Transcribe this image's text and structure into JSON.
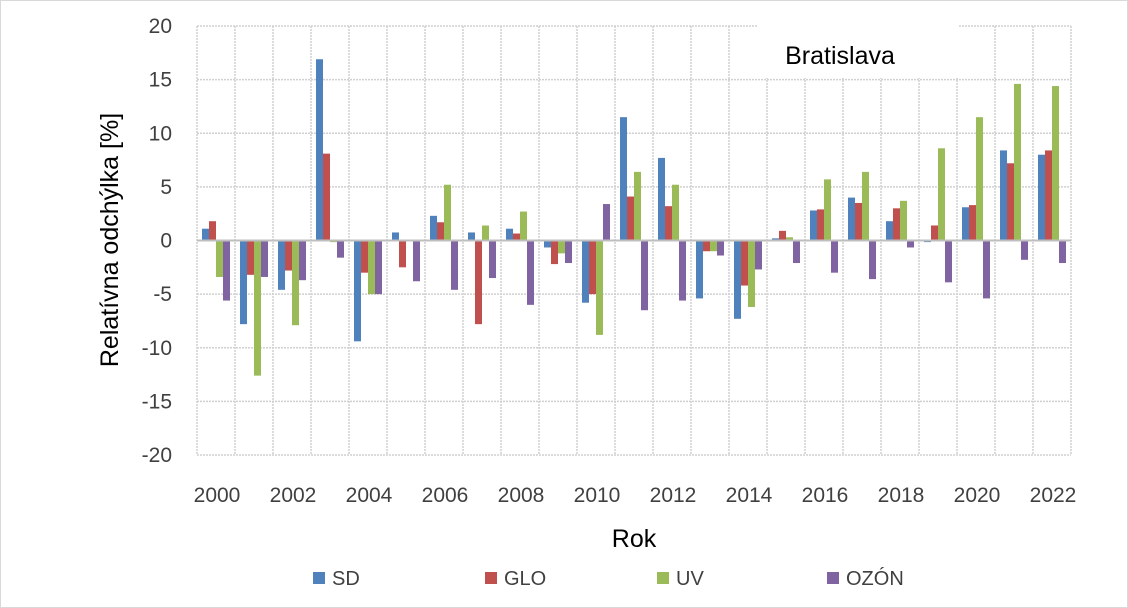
{
  "chart_data": {
    "type": "bar",
    "title": "Bratislava",
    "xlabel": "Rok",
    "ylabel": "Relatívna odchýlka [%]",
    "ylim": [
      -20,
      20
    ],
    "yticks": [
      "-20",
      "-15",
      "-10",
      "-5",
      "0",
      "5",
      "10",
      "15",
      "20"
    ],
    "grid": true,
    "legend_position": "bottom",
    "categories": [
      "2000",
      "2001",
      "2002",
      "2003",
      "2004",
      "2005",
      "2006",
      "2007",
      "2008",
      "2009",
      "2010",
      "2011",
      "2012",
      "2013",
      "2014",
      "2015",
      "2016",
      "2017",
      "2018",
      "2019",
      "2020",
      "2021",
      "2022"
    ],
    "xtick_labels": [
      "2000",
      "2002",
      "2004",
      "2006",
      "2008",
      "2010",
      "2012",
      "2014",
      "2016",
      "2018",
      "2020",
      "2022"
    ],
    "series": [
      {
        "name": "SD",
        "color": "#4f81bd",
        "values": [
          1.1,
          -7.8,
          -4.6,
          16.9,
          -9.4,
          0.75,
          2.3,
          0.75,
          1.1,
          -0.65,
          -5.8,
          11.5,
          7.7,
          -5.4,
          -7.3,
          0.2,
          2.8,
          4.0,
          1.8,
          -0.15,
          3.1,
          8.4,
          8.0
        ]
      },
      {
        "name": "GLO",
        "color": "#c0504d",
        "values": [
          1.8,
          -3.2,
          -2.8,
          8.1,
          -3.0,
          -2.5,
          1.7,
          -7.8,
          0.65,
          -2.2,
          -5.0,
          4.1,
          3.2,
          -1.0,
          -4.2,
          0.9,
          2.9,
          3.5,
          3.0,
          1.4,
          3.3,
          7.2,
          8.4
        ]
      },
      {
        "name": "UV",
        "color": "#9bbb59",
        "values": [
          -3.4,
          -12.6,
          -7.9,
          -0.15,
          -5.0,
          0,
          5.2,
          1.4,
          2.7,
          -1.2,
          -8.8,
          6.4,
          5.2,
          -1.0,
          -6.2,
          0.3,
          5.7,
          6.4,
          3.7,
          8.6,
          11.5,
          14.6,
          14.4
        ]
      },
      {
        "name": "OZÓN",
        "color": "#8064a2",
        "values": [
          -5.6,
          -3.4,
          -3.7,
          -1.6,
          -5.0,
          -3.8,
          -4.6,
          -3.5,
          -6.0,
          -2.1,
          3.4,
          -6.5,
          -5.6,
          -1.4,
          -2.7,
          -2.1,
          -3.0,
          -3.6,
          -0.65,
          -3.9,
          -5.4,
          -1.8,
          -2.1
        ]
      }
    ]
  }
}
